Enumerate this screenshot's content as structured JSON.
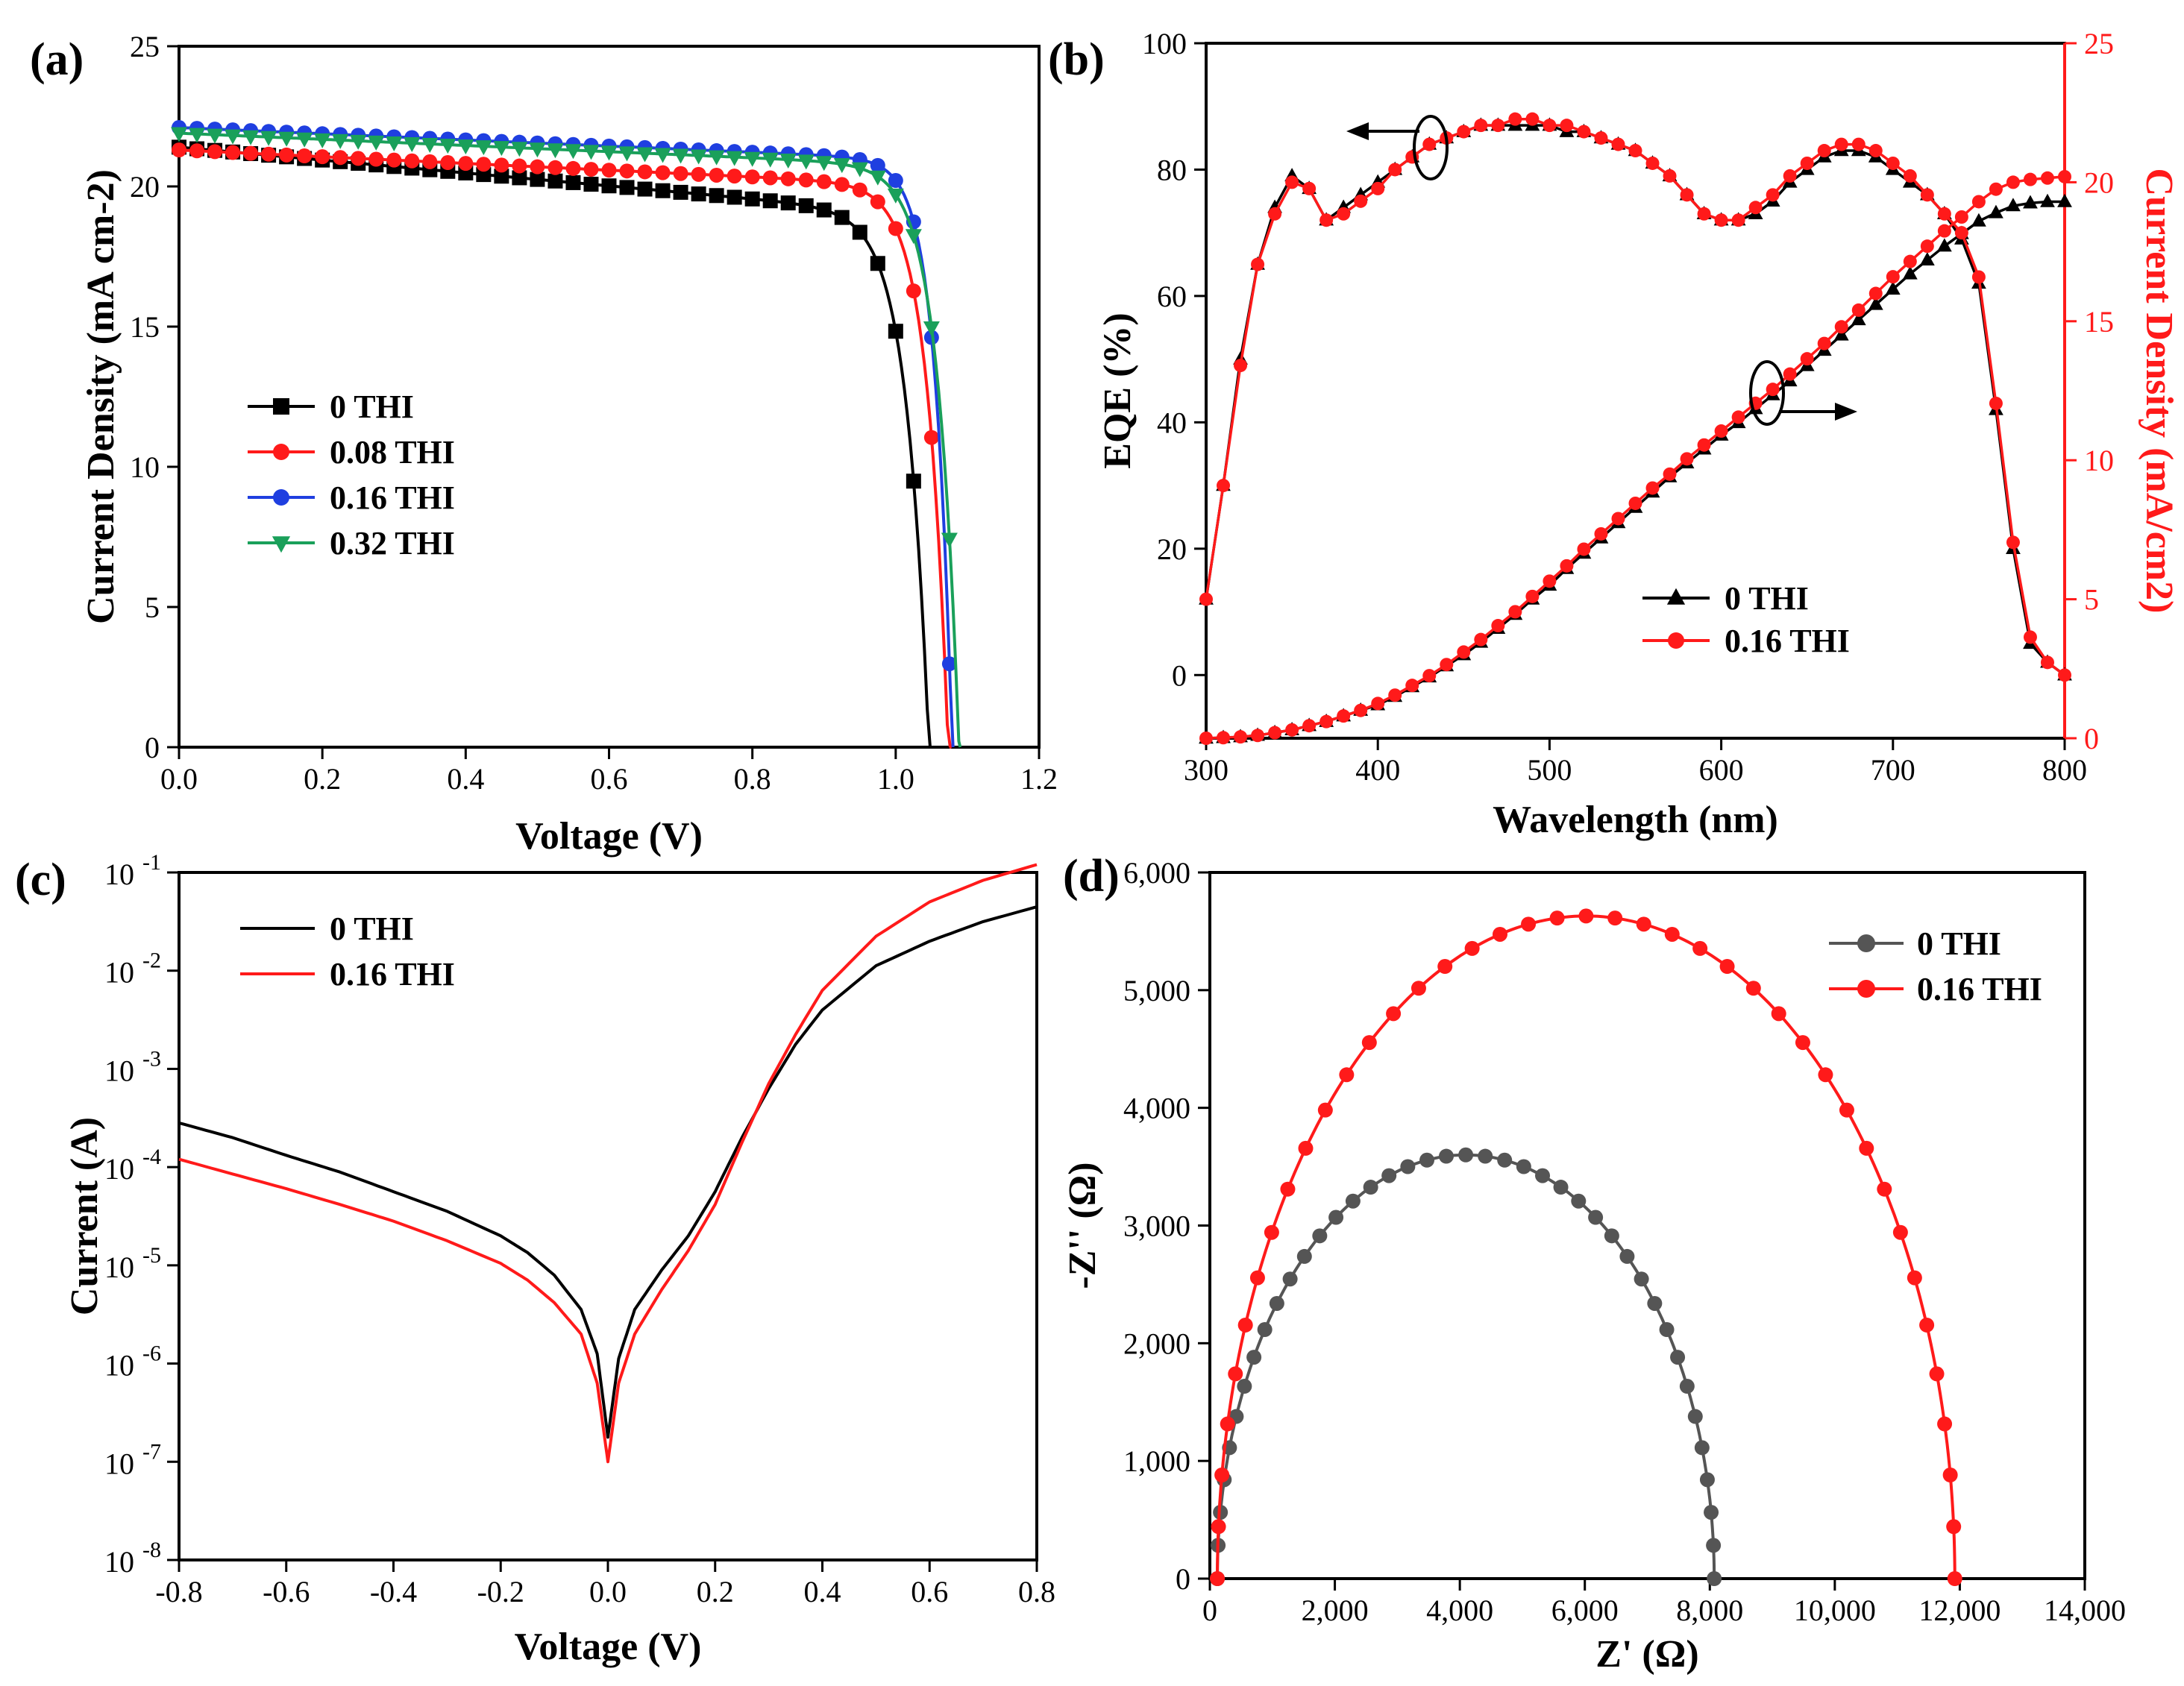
{
  "colors": {
    "black": "#000000",
    "red": "#ff1a1a",
    "blue": "#1f3fe0",
    "green": "#1aa05a",
    "gray": "#555555"
  },
  "chart_data": [
    {
      "panel": "(a)",
      "type": "line",
      "title": "",
      "xlabel": "Voltage (V)",
      "ylabel": "Current Density (mA cm-2)",
      "xlim": [
        0,
        1.2
      ],
      "ylim": [
        0,
        25
      ],
      "xticks": [
        "0.0",
        "0.2",
        "0.4",
        "0.6",
        "0.8",
        "1.0",
        "1.2"
      ],
      "yticks": [
        "0",
        "5",
        "10",
        "15",
        "20",
        "25"
      ],
      "legend_position": "center-left",
      "series": [
        {
          "name": "0 THI",
          "color": "#000000",
          "marker": "square",
          "jsc": 21.4,
          "slope": 2.3,
          "voc": 1.05,
          "k": 0.031
        },
        {
          "name": "0.08 THI",
          "color": "#ff1a1a",
          "marker": "circle",
          "jsc": 21.3,
          "slope": 1.2,
          "voc": 1.075,
          "k": 0.029
        },
        {
          "name": "0.16 THI",
          "color": "#1f3fe0",
          "marker": "circle",
          "jsc": 22.1,
          "slope": 1.1,
          "voc": 1.08,
          "k": 0.024
        },
        {
          "name": "0.32 THI",
          "color": "#1aa05a",
          "marker": "triangle-down",
          "jsc": 21.9,
          "slope": 1.1,
          "voc": 1.09,
          "k": 0.03
        }
      ]
    },
    {
      "panel": "(b)",
      "type": "line",
      "xlabel": "Wavelength (nm)",
      "ylabel": "EQE (%)",
      "ylabel_right": "Current Density (mA/cm2)",
      "xlim": [
        300,
        800
      ],
      "ylim": [
        -10,
        100
      ],
      "ylim_right": [
        0,
        25
      ],
      "xticks": [
        "300",
        "400",
        "500",
        "600",
        "700",
        "800"
      ],
      "yticks": [
        "0",
        "20",
        "40",
        "60",
        "80",
        "100"
      ],
      "yticks_right": [
        "0",
        "5",
        "10",
        "15",
        "20",
        "25"
      ],
      "legend_position": "bottom-center",
      "x": [
        300,
        310,
        320,
        330,
        340,
        350,
        360,
        370,
        380,
        390,
        400,
        410,
        420,
        430,
        440,
        450,
        460,
        470,
        480,
        490,
        500,
        510,
        520,
        530,
        540,
        550,
        560,
        570,
        580,
        590,
        600,
        610,
        620,
        630,
        640,
        650,
        660,
        670,
        680,
        690,
        700,
        710,
        720,
        730,
        740,
        750,
        760,
        770,
        780,
        790,
        800
      ],
      "series": [
        {
          "name": "0 THI",
          "color": "#000000",
          "marker": "triangle",
          "eqe": [
            12,
            30,
            50,
            65,
            74,
            79,
            77,
            72,
            74,
            76,
            78,
            80,
            82,
            84,
            85,
            86,
            87,
            87,
            87,
            87,
            87,
            86,
            86,
            85,
            84,
            83,
            81,
            79,
            76,
            73,
            72,
            72,
            73,
            75,
            78,
            80,
            82,
            83,
            83,
            82,
            80,
            78,
            76,
            73,
            69,
            62,
            42,
            20,
            5,
            2,
            0
          ],
          "jsc": [
            0,
            0.02,
            0.05,
            0.1,
            0.2,
            0.3,
            0.45,
            0.6,
            0.8,
            1.0,
            1.2,
            1.5,
            1.85,
            2.2,
            2.6,
            3.0,
            3.45,
            3.95,
            4.45,
            5.0,
            5.5,
            6.1,
            6.65,
            7.2,
            7.75,
            8.3,
            8.85,
            9.4,
            9.9,
            10.4,
            10.9,
            11.35,
            11.85,
            12.35,
            12.85,
            13.4,
            13.95,
            14.5,
            15.05,
            15.6,
            16.15,
            16.7,
            17.2,
            17.7,
            18.15,
            18.6,
            18.9,
            19.15,
            19.25,
            19.3,
            19.3
          ]
        },
        {
          "name": "0.16 THI",
          "color": "#ff1a1a",
          "marker": "circle",
          "eqe": [
            12,
            30,
            49,
            65,
            73,
            78,
            77,
            72,
            73,
            75,
            77,
            80,
            82,
            84,
            85,
            86,
            87,
            87,
            88,
            88,
            87,
            87,
            86,
            85,
            84,
            83,
            81,
            79,
            76,
            73,
            72,
            72,
            74,
            76,
            79,
            81,
            83,
            84,
            84,
            83,
            81,
            79,
            76,
            73,
            70,
            63,
            43,
            21,
            6,
            2,
            0
          ],
          "jsc": [
            0,
            0.02,
            0.05,
            0.1,
            0.2,
            0.3,
            0.45,
            0.6,
            0.8,
            1.0,
            1.25,
            1.55,
            1.9,
            2.25,
            2.65,
            3.1,
            3.55,
            4.05,
            4.55,
            5.1,
            5.65,
            6.2,
            6.8,
            7.35,
            7.9,
            8.45,
            9.0,
            9.5,
            10.05,
            10.55,
            11.05,
            11.55,
            12.05,
            12.55,
            13.1,
            13.65,
            14.2,
            14.8,
            15.4,
            16.0,
            16.6,
            17.15,
            17.7,
            18.25,
            18.75,
            19.3,
            19.75,
            20.0,
            20.1,
            20.15,
            20.2
          ]
        }
      ]
    },
    {
      "panel": "(c)",
      "type": "line",
      "xlabel": "Voltage (V)",
      "ylabel": "Current (A)",
      "xlim": [
        -0.8,
        0.8
      ],
      "ylim_log10": [
        -8,
        -1
      ],
      "xticks": [
        "-0.8",
        "-0.6",
        "-0.4",
        "-0.2",
        "0.0",
        "0.2",
        "0.4",
        "0.6",
        "0.8"
      ],
      "yticks": [
        "-1",
        "-2",
        "-3",
        "-4",
        "-5",
        "-6",
        "-7",
        "-8"
      ],
      "yticks_base": "10",
      "legend_position": "top-left",
      "series": [
        {
          "name": "0 THI",
          "color": "#000000",
          "v": [
            -0.8,
            -0.7,
            -0.6,
            -0.5,
            -0.4,
            -0.3,
            -0.2,
            -0.15,
            -0.1,
            -0.05,
            -0.02,
            0,
            0.02,
            0.05,
            0.1,
            0.15,
            0.2,
            0.25,
            0.3,
            0.35,
            0.4,
            0.5,
            0.6,
            0.7,
            0.8
          ],
          "log_i": [
            -3.55,
            -3.7,
            -3.88,
            -4.05,
            -4.25,
            -4.45,
            -4.7,
            -4.87,
            -5.1,
            -5.45,
            -5.9,
            -6.75,
            -5.95,
            -5.45,
            -5.05,
            -4.7,
            -4.25,
            -3.7,
            -3.2,
            -2.75,
            -2.4,
            -1.95,
            -1.7,
            -1.5,
            -1.35
          ]
        },
        {
          "name": "0.16 THI",
          "color": "#ff1a1a",
          "v": [
            -0.8,
            -0.7,
            -0.6,
            -0.5,
            -0.4,
            -0.3,
            -0.2,
            -0.15,
            -0.1,
            -0.05,
            -0.02,
            0,
            0.02,
            0.05,
            0.1,
            0.15,
            0.2,
            0.25,
            0.3,
            0.35,
            0.4,
            0.5,
            0.6,
            0.7,
            0.8
          ],
          "log_i": [
            -3.92,
            -4.07,
            -4.22,
            -4.38,
            -4.55,
            -4.75,
            -4.98,
            -5.15,
            -5.38,
            -5.7,
            -6.2,
            -7.0,
            -6.2,
            -5.7,
            -5.25,
            -4.85,
            -4.38,
            -3.75,
            -3.15,
            -2.65,
            -2.2,
            -1.65,
            -1.3,
            -1.08,
            -0.92
          ]
        }
      ]
    },
    {
      "panel": "(d)",
      "type": "scatter",
      "xlabel": "Z' (Ω)",
      "ylabel": "-Z'' (Ω)",
      "xlim": [
        0,
        14000
      ],
      "ylim": [
        0,
        6000
      ],
      "xticks": [
        "0",
        "2,000",
        "4,000",
        "6,000",
        "8,000",
        "10,000",
        "12,000",
        "14,000"
      ],
      "yticks": [
        "0",
        "1,000",
        "2,000",
        "3,000",
        "4,000",
        "5,000",
        "6,000"
      ],
      "legend_position": "top-right",
      "series": [
        {
          "name": "0 THI",
          "color": "#555555",
          "marker": "circle",
          "rs": 120,
          "rct": 7950,
          "peak": 3600
        },
        {
          "name": "0.16 THI",
          "color": "#ff1a1a",
          "marker": "circle",
          "rs": 120,
          "rct": 11800,
          "peak": 5630
        }
      ]
    }
  ]
}
